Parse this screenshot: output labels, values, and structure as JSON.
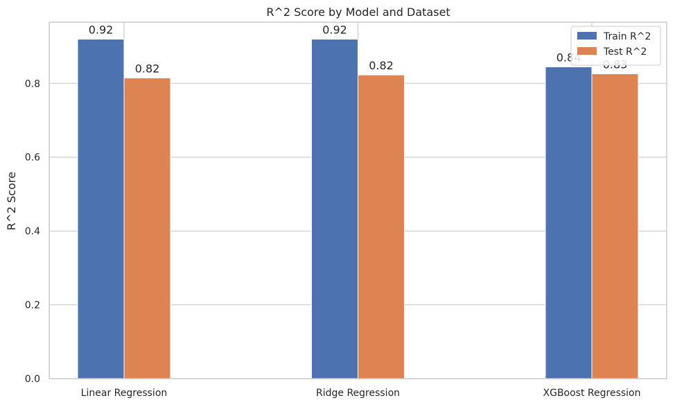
{
  "chart_data": {
    "type": "bar",
    "title": "R^2 Score by Model and Dataset",
    "xlabel": "",
    "ylabel": "R^2 Score",
    "categories": [
      "Linear Regression",
      "Ridge Regression",
      "XGBoost Regression"
    ],
    "series": [
      {
        "name": "Train R^2",
        "values": [
          0.92,
          0.92,
          0.845
        ],
        "labels": [
          "0.92",
          "0.92",
          "0.84"
        ],
        "color": "#4c72b0"
      },
      {
        "name": "Test R^2",
        "values": [
          0.815,
          0.823,
          0.826
        ],
        "labels": [
          "0.82",
          "0.82",
          "0.83"
        ],
        "color": "#dd8452"
      }
    ],
    "ylim": [
      0,
      0.966
    ],
    "yticks": [
      0.0,
      0.2,
      0.4,
      0.6,
      0.8
    ],
    "ytick_labels": [
      "0.0",
      "0.2",
      "0.4",
      "0.6",
      "0.8"
    ],
    "grid": true,
    "legend_position": "top-right"
  }
}
